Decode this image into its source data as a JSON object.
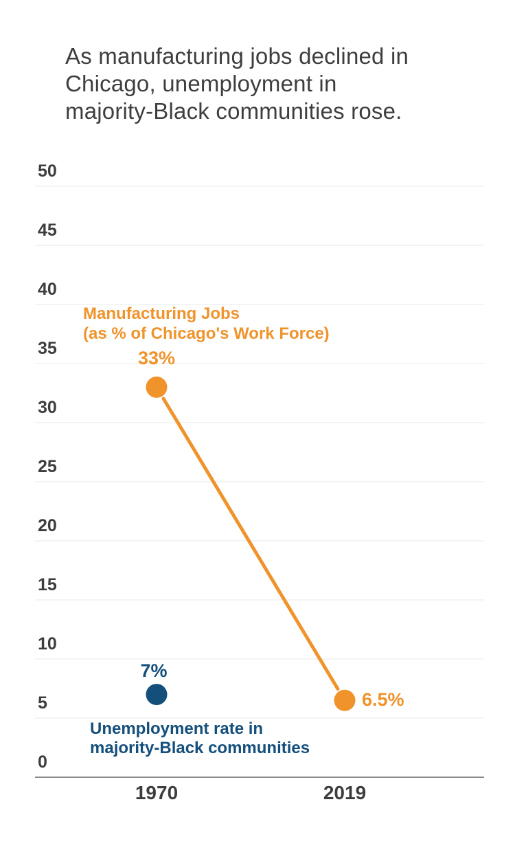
{
  "title": {
    "text": "As manufacturing jobs declined in Chicago, unemployment in majority-Black communities rose.",
    "lines": [
      "As manufacturing jobs declined in",
      "Chicago, unemployment in",
      "majority-Black communities rose."
    ]
  },
  "colors": {
    "orange": "#F0932B",
    "blue": "#144F7C",
    "title_text": "#3E3E3E",
    "axis_text": "#3D3D3D",
    "gridline": "#E9E9E9",
    "zero_line": "#8A8A8A",
    "background": "#FFFFFF"
  },
  "chart_data": {
    "type": "line",
    "title": "As manufacturing jobs declined in Chicago, unemployment in majority-Black communities rose.",
    "categories": [
      "1970",
      "2019"
    ],
    "series": [
      {
        "name": "Manufacturing Jobs (as % of Chicago's Work Force)",
        "color": "#F0932B",
        "values": [
          33,
          6.5
        ],
        "point_labels": [
          "33%",
          "6.5%"
        ],
        "draw_line": true
      },
      {
        "name": "Unemployment rate in majority-Black communities",
        "color": "#144F7C",
        "values": [
          7,
          null
        ],
        "point_labels": [
          "7%",
          null
        ],
        "draw_line": false
      }
    ],
    "xlabel": "",
    "ylabel": "",
    "ylim": [
      0,
      50
    ],
    "yticks": [
      0,
      5,
      10,
      15,
      20,
      25,
      30,
      35,
      40,
      45,
      50
    ],
    "grid": true,
    "legend_position": "inline annotations beside each series"
  },
  "annotations": {
    "manufacturing": [
      "Manufacturing Jobs",
      "(as % of Chicago's Work Force)"
    ],
    "unemployment": [
      "Unemployment rate in",
      "majority-Black communities"
    ]
  }
}
